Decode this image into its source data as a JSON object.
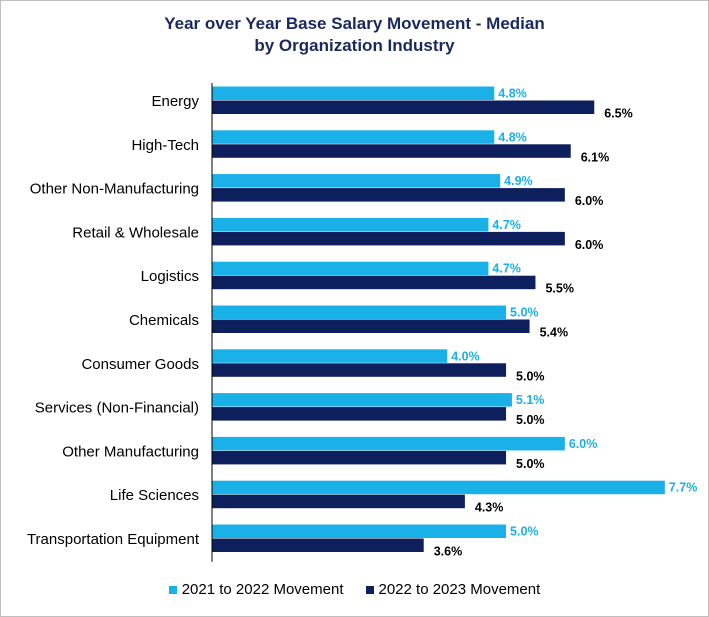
{
  "chart_data": {
    "type": "bar",
    "orientation": "horizontal",
    "title_lines": [
      "Year over Year Base Salary Movement - Median",
      "by Organization Industry"
    ],
    "categories": [
      "Energy",
      "High-Tech",
      "Other Non-Manufacturing",
      "Retail & Wholesale",
      "Logistics",
      "Chemicals",
      "Consumer Goods",
      "Services (Non-Financial)",
      "Other Manufacturing",
      "Life Sciences",
      "Transportation Equipment"
    ],
    "series": [
      {
        "name": "2021 to 2022 Movement",
        "color": "#1ab0e8",
        "values": [
          4.8,
          4.8,
          4.9,
          4.7,
          4.7,
          5.0,
          4.0,
          5.1,
          6.0,
          7.7,
          5.0
        ],
        "labels": [
          "4.8%",
          "4.8%",
          "4.9%",
          "4.7%",
          "4.7%",
          "5.0%",
          "4.0%",
          "5.1%",
          "6.0%",
          "7.7%",
          "5.0%"
        ]
      },
      {
        "name": "2022 to 2023 Movement",
        "color": "#0d1f5c",
        "values": [
          6.5,
          6.1,
          6.0,
          6.0,
          5.5,
          5.4,
          5.0,
          5.0,
          5.0,
          4.3,
          3.6
        ],
        "labels": [
          "6.5%",
          "6.1%",
          "6.0%",
          "6.0%",
          "5.5%",
          "5.4%",
          "5.0%",
          "5.0%",
          "5.0%",
          "4.3%",
          "3.6%"
        ]
      }
    ],
    "xlim": [
      0,
      8.4
    ],
    "gridlines": false,
    "legend_position": "bottom",
    "axis_color": "#000000"
  }
}
